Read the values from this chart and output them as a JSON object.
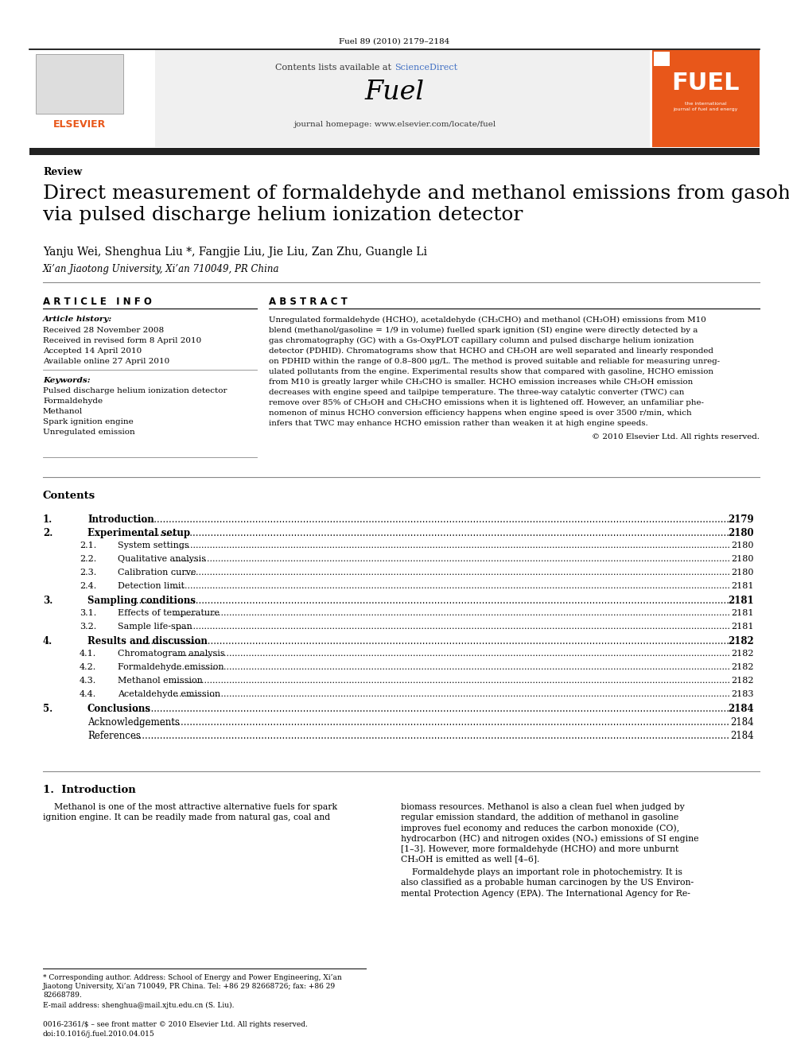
{
  "journal_info": "Fuel 89 (2010) 2179–2184",
  "header_text1": "Contents lists available at ",
  "header_sciencedirect": "ScienceDirect",
  "header_journal": "Fuel",
  "header_homepage": "journal homepage: www.elsevier.com/locate/fuel",
  "section_label": "Review",
  "title": "Direct measurement of formaldehyde and methanol emissions from gasohol engine\nvia pulsed discharge helium ionization detector",
  "authors": "Yanju Wei, Shenghua Liu *, Fangjie Liu, Jie Liu, Zan Zhu, Guangle Li",
  "affiliation": "Xi’an Jiaotong University, Xi’an 710049, PR China",
  "article_info_header": "A R T I C L E   I N F O",
  "abstract_header": "A B S T R A C T",
  "article_history_label": "Article history:",
  "received1": "Received 28 November 2008",
  "received2": "Received in revised form 8 April 2010",
  "accepted": "Accepted 14 April 2010",
  "available": "Available online 27 April 2010",
  "keywords_label": "Keywords:",
  "keywords": [
    "Pulsed discharge helium ionization detector",
    "Formaldehyde",
    "Methanol",
    "Spark ignition engine",
    "Unregulated emission"
  ],
  "abstract_text": "Unregulated formaldehyde (HCHO), acetaldehyde (CH₃CHO) and methanol (CH₃OH) emissions from M10 blend (methanol/gasoline = 1/9 in volume) fuelled spark ignition (SI) engine were directly detected by a gas chromatography (GC) with a Gs-OxyPLOT capillary column and pulsed discharge helium ionization detector (PDHID). Chromatograms show that HCHO and CH₃OH are well separated and linearly responded on PDHID within the range of 0.8–800 μg/L. The method is proved suitable and reliable for measuring unregulated pollutants from the engine. Experimental results show that compared with gasoline, HCHO emission from M10 is greatly larger while CH₃CHO is smaller. HCHO emission increases while CH₃OH emission decreases with engine speed and tailpipe temperature. The three-way catalytic converter (TWC) can remove over 85% of CH₃OH and CH₃CHO emissions when it is lightened off. However, an unfamiliar phenomenon of minus HCHO conversion efficiency happens when engine speed is over 3500 r/min, which infers that TWC may enhance HCHO emission rather than weaken it at high engine speeds.",
  "copyright": "© 2010 Elsevier Ltd. All rights reserved.",
  "contents_header": "Contents",
  "toc_entries": [
    {
      "num": "1.",
      "sub": "",
      "title": "Introduction",
      "page": "2179"
    },
    {
      "num": "2.",
      "sub": "",
      "title": "Experimental setup",
      "page": "2180"
    },
    {
      "num": "",
      "sub": "2.1.",
      "title": "System settings",
      "page": "2180"
    },
    {
      "num": "",
      "sub": "2.2.",
      "title": "Qualitative analysis",
      "page": "2180"
    },
    {
      "num": "",
      "sub": "2.3.",
      "title": "Calibration curve",
      "page": "2180"
    },
    {
      "num": "",
      "sub": "2.4.",
      "title": "Detection limit",
      "page": "2181"
    },
    {
      "num": "3.",
      "sub": "",
      "title": "Sampling conditions",
      "page": "2181"
    },
    {
      "num": "",
      "sub": "3.1.",
      "title": "Effects of temperature",
      "page": "2181"
    },
    {
      "num": "",
      "sub": "3.2.",
      "title": "Sample life-span",
      "page": "2181"
    },
    {
      "num": "4.",
      "sub": "",
      "title": "Results and discussion",
      "page": "2182"
    },
    {
      "num": "",
      "sub": "4.1.",
      "title": "Chromatogram analysis",
      "page": "2182"
    },
    {
      "num": "",
      "sub": "4.2.",
      "title": "Formaldehyde emission",
      "page": "2182"
    },
    {
      "num": "",
      "sub": "4.3.",
      "title": "Methanol emission",
      "page": "2182"
    },
    {
      "num": "",
      "sub": "4.4.",
      "title": "Acetaldehyde emission",
      "page": "2183"
    },
    {
      "num": "5.",
      "sub": "",
      "title": "Conclusions",
      "page": "2184"
    },
    {
      "num": "",
      "sub": "",
      "title": "Acknowledgements",
      "page": "2184"
    },
    {
      "num": "",
      "sub": "",
      "title": "References",
      "page": "2184"
    }
  ],
  "intro_section": "1.  Introduction",
  "footnote_star": "* Corresponding author. Address: School of Energy and Power Engineering, Xi’an Jiaotong University, Xi’an 710049, PR China. Tel: +86 29 82668726; fax: +86 29 82668789.",
  "footnote_email": "E-mail address: shenghua@mail.xjtu.edu.cn (S. Liu).",
  "bottom_info1": "0016-2361/$ – see front matter © 2010 Elsevier Ltd. All rights reserved.",
  "bottom_info2": "doi:10.1016/j.fuel.2010.04.015",
  "elsevier_orange": "#E8571A",
  "sciencedirect_color": "#4472C4",
  "black": "#000000",
  "dark_gray": "#333333",
  "mid_gray": "#888888",
  "light_gray": "#E8E8E8",
  "header_bg": "#F0F0F0",
  "dark_bar_color": "#222222"
}
